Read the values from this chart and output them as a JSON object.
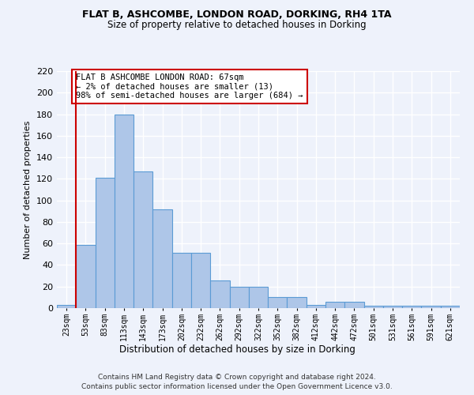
{
  "title1": "FLAT B, ASHCOMBE, LONDON ROAD, DORKING, RH4 1TA",
  "title2": "Size of property relative to detached houses in Dorking",
  "xlabel": "Distribution of detached houses by size in Dorking",
  "ylabel": "Number of detached properties",
  "bar_values": [
    3,
    59,
    121,
    180,
    127,
    92,
    51,
    51,
    26,
    20,
    20,
    10,
    10,
    3,
    6,
    6,
    2,
    2,
    2,
    2,
    2
  ],
  "bar_labels": [
    "23sqm",
    "53sqm",
    "83sqm",
    "113sqm",
    "143sqm",
    "173sqm",
    "202sqm",
    "232sqm",
    "262sqm",
    "292sqm",
    "322sqm",
    "352sqm",
    "382sqm",
    "412sqm",
    "442sqm",
    "472sqm",
    "501sqm",
    "531sqm",
    "561sqm",
    "591sqm",
    "621sqm"
  ],
  "bar_color": "#aec6e8",
  "bar_edge_color": "#5b9bd5",
  "red_line_index": 1,
  "annotation_text": "FLAT B ASHCOMBE LONDON ROAD: 67sqm\n← 2% of detached houses are smaller (13)\n98% of semi-detached houses are larger (684) →",
  "annotation_box_color": "#ffffff",
  "annotation_border_color": "#cc0000",
  "footer1": "Contains HM Land Registry data © Crown copyright and database right 2024.",
  "footer2": "Contains public sector information licensed under the Open Government Licence v3.0.",
  "ylim": [
    0,
    220
  ],
  "yticks": [
    0,
    20,
    40,
    60,
    80,
    100,
    120,
    140,
    160,
    180,
    200,
    220
  ],
  "bg_color": "#eef2fb",
  "grid_color": "#ffffff"
}
